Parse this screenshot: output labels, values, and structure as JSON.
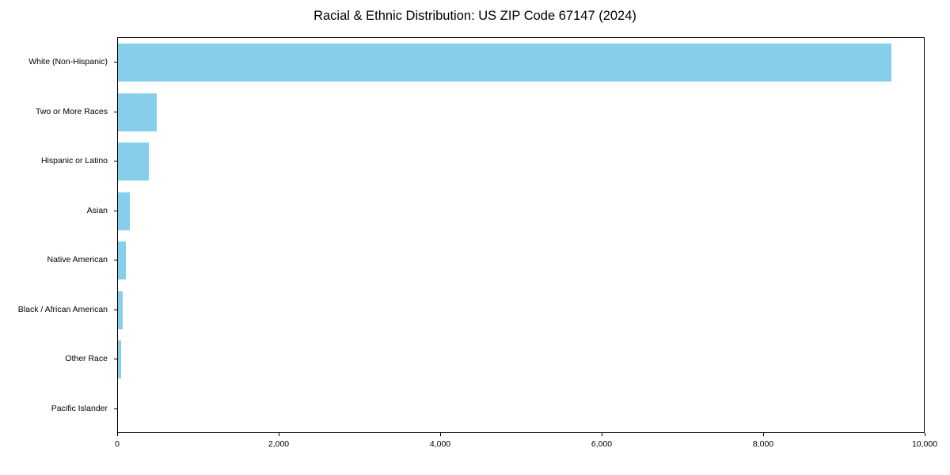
{
  "chart_data": {
    "type": "bar",
    "orientation": "horizontal",
    "title": "Racial & Ethnic Distribution: US ZIP Code 67147 (2024)",
    "categories": [
      "White (Non-Hispanic)",
      "Two or More Races",
      "Hispanic or Latino",
      "Asian",
      "Native American",
      "Black / African American",
      "Other Race",
      "Pacific Islander"
    ],
    "values": [
      9600,
      480,
      380,
      150,
      95,
      60,
      35,
      0
    ],
    "xlabel": "",
    "ylabel": "",
    "xlim": [
      0,
      10000
    ],
    "x_ticks": [
      0,
      2000,
      4000,
      6000,
      8000,
      10000
    ],
    "x_tick_labels": [
      "0",
      "2,000",
      "4,000",
      "6,000",
      "8,000",
      "10,000"
    ],
    "bar_color": "#87CEEB",
    "grid": false,
    "legend_position": "none"
  }
}
